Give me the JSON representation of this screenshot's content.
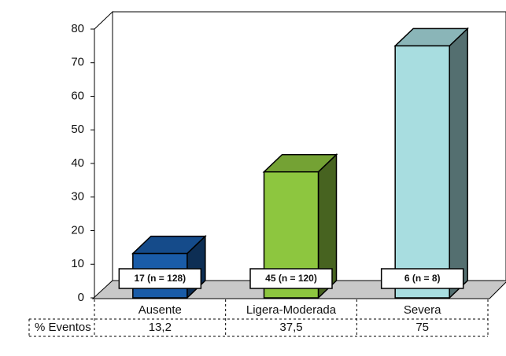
{
  "chart_data": {
    "type": "bar3d",
    "categories": [
      "Ausente",
      "Ligera-Moderada",
      "Severa"
    ],
    "values": [
      13.2,
      37.5,
      75
    ],
    "value_labels": [
      "13,2",
      "37,5",
      "75"
    ],
    "colors": [
      "#1a5ca8",
      "#8dc63f",
      "#a8dde0"
    ],
    "bar_labels": [
      "17 (n = 128)",
      "45 (n = 120)",
      "6 (n = 8)"
    ],
    "table_label": "% Eventos",
    "ylim": [
      0,
      80
    ],
    "yticks": [
      0,
      10,
      20,
      30,
      40,
      50,
      60,
      70,
      80
    ]
  }
}
